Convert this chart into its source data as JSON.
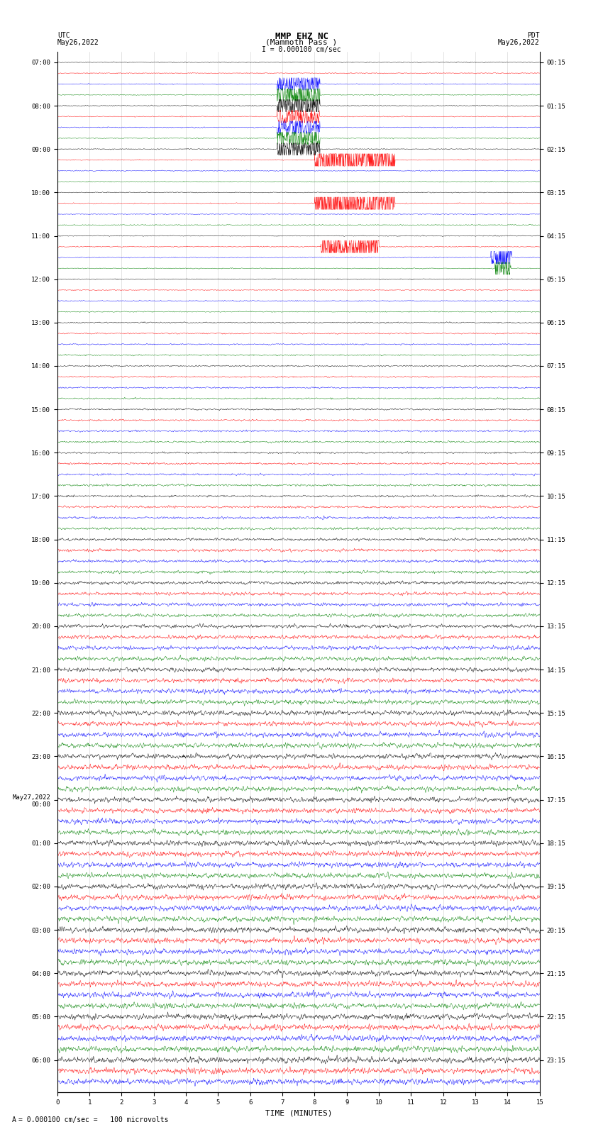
{
  "title_line1": "MMP EHZ NC",
  "title_line2": "(Mammoth Pass )",
  "scale_text": "I = 0.000100 cm/sec",
  "footer_text": "= 0.000100 cm/sec =   100 microvolts",
  "utc_label": "UTC",
  "utc_date": "May26,2022",
  "pdt_label": "PDT",
  "pdt_date": "May26,2022",
  "xlabel": "TIME (MINUTES)",
  "left_times": [
    "07:00",
    "",
    "",
    "",
    "08:00",
    "",
    "",
    "",
    "09:00",
    "",
    "",
    "",
    "10:00",
    "",
    "",
    "",
    "11:00",
    "",
    "",
    "",
    "12:00",
    "",
    "",
    "",
    "13:00",
    "",
    "",
    "",
    "14:00",
    "",
    "",
    "",
    "15:00",
    "",
    "",
    "",
    "16:00",
    "",
    "",
    "",
    "17:00",
    "",
    "",
    "",
    "18:00",
    "",
    "",
    "",
    "19:00",
    "",
    "",
    "",
    "20:00",
    "",
    "",
    "",
    "21:00",
    "",
    "",
    "",
    "22:00",
    "",
    "",
    "",
    "23:00",
    "",
    "",
    "",
    "May27,2022\n00:00",
    "",
    "",
    "",
    "01:00",
    "",
    "",
    "",
    "02:00",
    "",
    "",
    "",
    "03:00",
    "",
    "",
    "",
    "04:00",
    "",
    "",
    "",
    "05:00",
    "",
    "",
    "",
    "06:00",
    "",
    ""
  ],
  "right_times": [
    "00:15",
    "",
    "",
    "",
    "01:15",
    "",
    "",
    "",
    "02:15",
    "",
    "",
    "",
    "03:15",
    "",
    "",
    "",
    "04:15",
    "",
    "",
    "",
    "05:15",
    "",
    "",
    "",
    "06:15",
    "",
    "",
    "",
    "07:15",
    "",
    "",
    "",
    "08:15",
    "",
    "",
    "",
    "09:15",
    "",
    "",
    "",
    "10:15",
    "",
    "",
    "",
    "11:15",
    "",
    "",
    "",
    "12:15",
    "",
    "",
    "",
    "13:15",
    "",
    "",
    "",
    "14:15",
    "",
    "",
    "",
    "15:15",
    "",
    "",
    "",
    "16:15",
    "",
    "",
    "",
    "17:15",
    "",
    "",
    "",
    "18:15",
    "",
    "",
    "",
    "19:15",
    "",
    "",
    "",
    "20:15",
    "",
    "",
    "",
    "21:15",
    "",
    "",
    "",
    "22:15",
    "",
    "",
    "",
    "23:15",
    "",
    ""
  ],
  "colors": [
    "black",
    "red",
    "blue",
    "green"
  ],
  "bg_color": "#ffffff",
  "trace_bg": "#ffffff",
  "n_rows": 95,
  "minutes": 15,
  "noise_base": 0.15,
  "grid_color": "#888888",
  "grid_alpha": 0.4,
  "title_fontsize": 9,
  "label_fontsize": 7,
  "tick_fontsize": 6.5
}
